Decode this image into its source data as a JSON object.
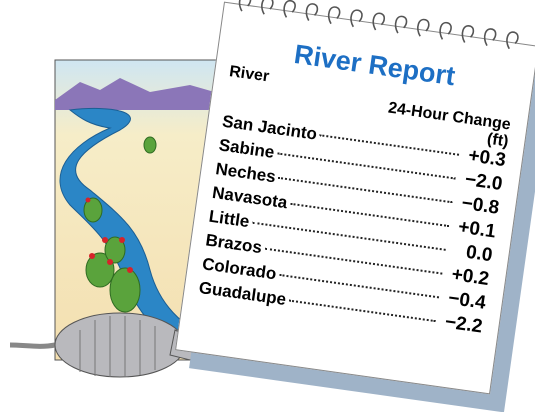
{
  "title": "River Report",
  "table": {
    "headers": [
      "River",
      "24-Hour Change (ft)"
    ],
    "rows": [
      [
        "San Jacinto",
        "+0.3"
      ],
      [
        "Sabine",
        "−2.0"
      ],
      [
        "Neches",
        "−0.8"
      ],
      [
        "Navasota",
        "+0.1"
      ],
      [
        "Little",
        "0.0"
      ],
      [
        "Brazos",
        "+0.2"
      ],
      [
        "Colorado",
        "−0.4"
      ],
      [
        "Guadalupe",
        "−2.2"
      ]
    ]
  }
}
